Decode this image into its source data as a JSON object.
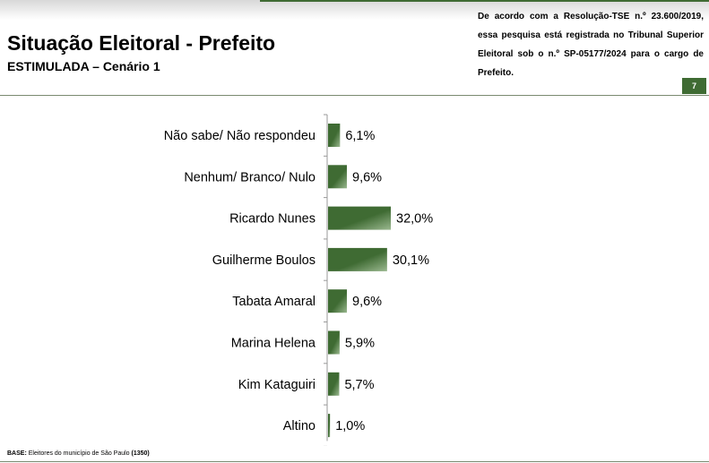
{
  "header": {
    "title": "Situação Eleitoral - Prefeito",
    "subtitle": "ESTIMULADA – Cenário 1",
    "note": "De acordo com a Resolução-TSE n.º 23.600/2019, essa pesquisa está registrada no Tribunal Superior Eleitoral sob o n.º SP-05177/2024 para o cargo de Prefeito.",
    "page_number": "7"
  },
  "footer": {
    "base_label": "BASE:",
    "base_text": " Eleitores do município de São Paulo ",
    "base_count": "(1350)"
  },
  "colors": {
    "bar_dark": "#3f6b33",
    "bar_light": "#9ab88f",
    "accent": "#3f6b33"
  },
  "chart_data": {
    "type": "bar",
    "orientation": "horizontal",
    "categories": [
      "Não sabe/ Não respondeu",
      "Nenhum/ Branco/ Nulo",
      "Ricardo Nunes",
      "Guilherme Boulos",
      "Tabata Amaral",
      "Marina Helena",
      "Kim Kataguiri",
      "Altino"
    ],
    "values": [
      6.1,
      9.6,
      32.0,
      30.1,
      9.6,
      5.9,
      5.7,
      1.0
    ],
    "value_labels": [
      "6,1%",
      "9,6%",
      "32,0%",
      "30,1%",
      "9,6%",
      "5,9%",
      "5,7%",
      "1,0%"
    ],
    "xlim": [
      0,
      32
    ]
  }
}
